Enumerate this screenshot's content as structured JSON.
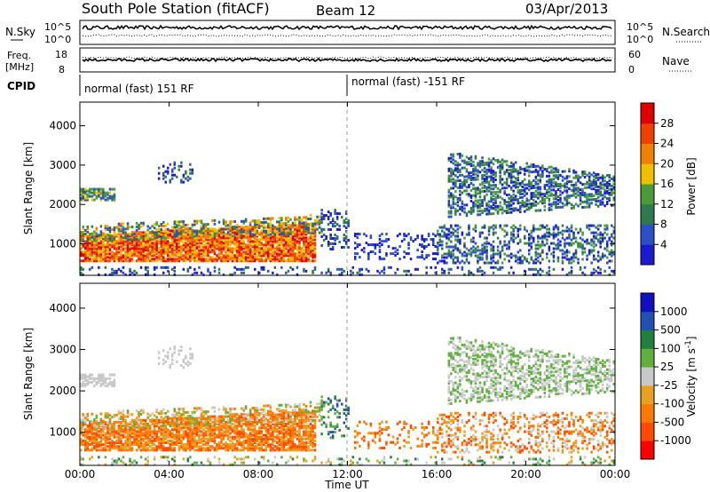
{
  "header": {
    "station": "South Pole Station (fitACF)",
    "beam": "Beam 12",
    "date": "03/Apr/2013"
  },
  "noise_panel": {
    "left_label": "N.Sky",
    "left_ticks": [
      "10^5",
      "10^0"
    ],
    "right_ticks": [
      "10^5",
      "10^0"
    ],
    "right_label": "N.Search"
  },
  "freq_panel": {
    "left_label_line1": "Freq.",
    "left_label_line2": "[MHz]",
    "left_ticks": [
      "18",
      "8"
    ],
    "right_ticks": [
      "60",
      "0"
    ],
    "right_label": "Nave"
  },
  "cpid": {
    "label": "CPID",
    "segments": [
      {
        "text": "normal (fast) 151 RF",
        "start_hour": 0
      },
      {
        "text": "normal (fast) -151 RF",
        "start_hour": 12
      }
    ]
  },
  "colors": {
    "power_scale": [
      "#1a1ad0",
      "#2a4fc8",
      "#2f7a4a",
      "#4c9a3a",
      "#f0c000",
      "#f08000",
      "#f04000",
      "#e00000"
    ],
    "velocity_scale": [
      "#ff0000",
      "#ff4a00",
      "#ff7800",
      "#e8a020",
      "#c8c8c8",
      "#60b040",
      "#208040",
      "#2050b0",
      "#1010c0"
    ]
  },
  "chart_data": [
    {
      "type": "heatmap",
      "name": "power",
      "ylabel": "Slant Range [km]",
      "yticks": [
        "1000",
        "2000",
        "3000",
        "4000"
      ],
      "ylim": [
        200,
        4600
      ],
      "xlabel": "Time UT",
      "xticks": [
        "00:00",
        "04:00",
        "08:00",
        "12:00",
        "16:00",
        "20:00",
        "00:00"
      ],
      "colorbar": {
        "label": "Power [dB]",
        "ticks": [
          "4",
          "8",
          "12",
          "16",
          "20",
          "24",
          "28"
        ],
        "range": [
          0,
          32
        ]
      }
    },
    {
      "type": "heatmap",
      "name": "velocity",
      "ylabel": "Slant Range [km]",
      "yticks": [
        "1000",
        "2000",
        "3000",
        "4000"
      ],
      "ylim": [
        200,
        4600
      ],
      "xlabel": "Time UT",
      "xticks": [
        "00:00",
        "04:00",
        "08:00",
        "12:00",
        "16:00",
        "20:00",
        "00:00"
      ],
      "colorbar": {
        "label": "Velocity [m s^-1]",
        "ticks": [
          "1000",
          "500",
          "100",
          "25",
          "-25",
          "-100",
          "-500",
          "-1000"
        ]
      }
    }
  ]
}
